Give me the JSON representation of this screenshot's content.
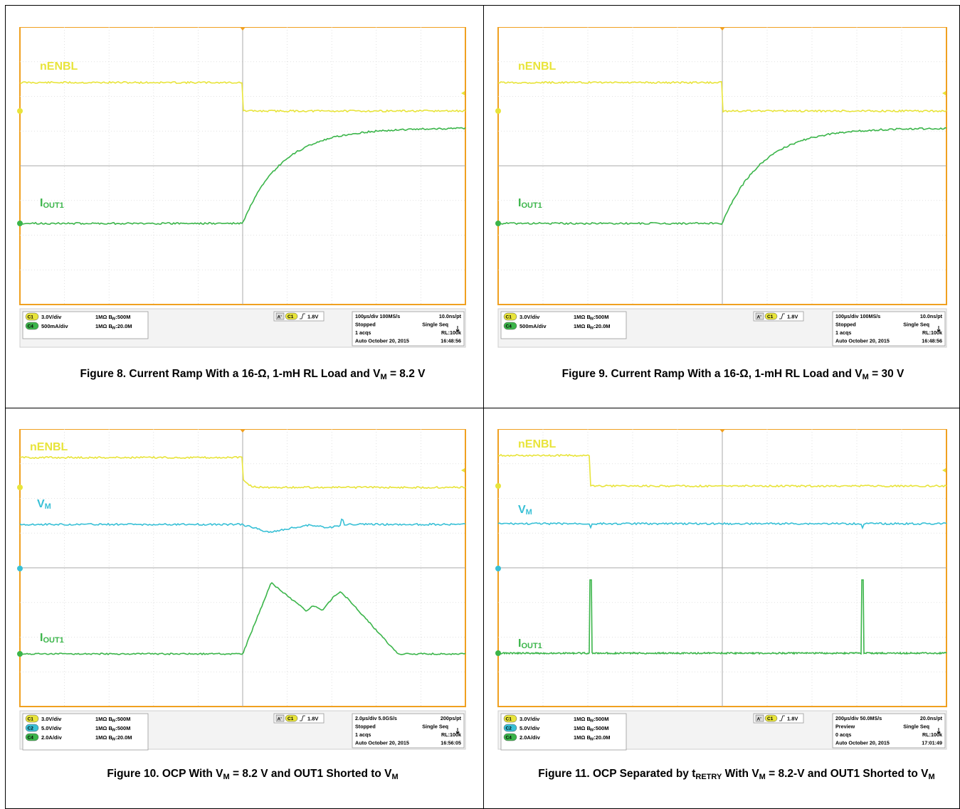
{
  "panels": [
    {
      "caption": [
        "Figure 8. Current Ramp With a 16-",
        "Ω",
        ", 1-mH RL Load and V",
        "M",
        " = 8.2 V"
      ],
      "trace_labels": {
        "nENBL": "nENBL",
        "IOUT1": [
          "I",
          "OUT1"
        ]
      },
      "channels": [
        {
          "badge": "C1",
          "scale": "3.0V/div",
          "impedance": "1MΩ",
          "bw": "500M",
          "color": "#e8e43a"
        },
        {
          "badge": "C4",
          "scale": "500mA/div",
          "impedance": "1MΩ",
          "bw": "20.0M",
          "color": "#3bb54a"
        }
      ],
      "trigger": {
        "badge": "A'",
        "ch": "C1",
        "level": "1.8V"
      },
      "timebase": {
        "div": "100µs/div",
        "rate": "100MS/s",
        "pt": "10.0ns/pt",
        "state": "Stopped",
        "mode": "Single Seq",
        "acqs": "1 acqs",
        "rl": "RL:100k",
        "auto": "Auto",
        "date": "October 20, 2015",
        "time": "16:48:56"
      }
    },
    {
      "caption": [
        "Figure 9. Current Ramp With a 16-",
        "Ω",
        ", 1-mH RL Load and V",
        "M",
        " = 30 V"
      ],
      "trace_labels": {
        "nENBL": "nENBL",
        "IOUT1": [
          "I",
          "OUT1"
        ]
      },
      "channels": [
        {
          "badge": "C1",
          "scale": "3.0V/div",
          "impedance": "1MΩ",
          "bw": "500M",
          "color": "#e8e43a"
        },
        {
          "badge": "C4",
          "scale": "500mA/div",
          "impedance": "1MΩ",
          "bw": "20.0M",
          "color": "#3bb54a"
        }
      ],
      "trigger": {
        "badge": "A'",
        "ch": "C1",
        "level": "1.8V"
      },
      "timebase": {
        "div": "100µs/div",
        "rate": "100MS/s",
        "pt": "10.0ns/pt",
        "state": "Stopped",
        "mode": "Single Seq",
        "acqs": "1 acqs",
        "rl": "RL:100k",
        "auto": "Auto",
        "date": "October 20, 2015",
        "time": "16:48:56"
      }
    },
    {
      "caption": [
        "Figure 10. OCP With V",
        "M",
        " = 8.2 V and OUT1 Shorted to V",
        "M",
        ""
      ],
      "trace_labels": {
        "nENBL": "nENBL",
        "VM": [
          "V",
          "M"
        ],
        "IOUT1": [
          "I",
          "OUT1"
        ]
      },
      "channels": [
        {
          "badge": "C1",
          "scale": "3.0V/div",
          "impedance": "1MΩ",
          "bw": "500M",
          "color": "#e8e43a"
        },
        {
          "badge": "C2",
          "scale": "5.0V/div",
          "impedance": "1MΩ",
          "bw": "500M",
          "color": "#38c0d6"
        },
        {
          "badge": "C4",
          "scale": "2.0A/div",
          "impedance": "1MΩ",
          "bw": "20.0M",
          "color": "#3bb54a"
        }
      ],
      "trigger": {
        "badge": "A'",
        "ch": "C1",
        "level": "1.8V"
      },
      "timebase": {
        "div": "2.0µs/div",
        "rate": "5.0GS/s",
        "pt": "200ps/pt",
        "state": "Stopped",
        "mode": "Single Seq",
        "acqs": "1 acqs",
        "rl": "RL:100k",
        "auto": "Auto",
        "date": "October 20, 2015",
        "time": "16:56:05"
      }
    },
    {
      "caption": [
        "Figure 11. OCP Separated by t",
        "RETRY",
        " With V",
        "M",
        " = 8.2-V and OUT1 Shorted to V",
        "M",
        ""
      ],
      "trace_labels": {
        "nENBL": "nENBL",
        "VM": [
          "V",
          "M"
        ],
        "IOUT1": [
          "I",
          "OUT1"
        ]
      },
      "channels": [
        {
          "badge": "C1",
          "scale": "3.0V/div",
          "impedance": "1MΩ",
          "bw": "500M",
          "color": "#e8e43a"
        },
        {
          "badge": "C2",
          "scale": "5.0V/div",
          "impedance": "1MΩ",
          "bw": "500M",
          "color": "#38c0d6"
        },
        {
          "badge": "C4",
          "scale": "2.0A/div",
          "impedance": "1MΩ",
          "bw": "20.0M",
          "color": "#3bb54a"
        }
      ],
      "trigger": {
        "badge": "A'",
        "ch": "C1",
        "level": "1.8V"
      },
      "timebase": {
        "div": "200µs/div",
        "rate": "50.0MS/s",
        "pt": "20.0ns/pt",
        "state": "Preview",
        "mode": "Single Seq",
        "acqs": "0 acqs",
        "rl": "RL:100k",
        "auto": "Auto",
        "date": "October 20, 2015",
        "time": "17:01:49"
      }
    }
  ],
  "colors": {
    "grid_border": "#f0a020",
    "screen_bg": "#ffffff",
    "yellow": "#e8e43a",
    "cyan": "#38c0d6",
    "green": "#3bb54a",
    "status_bg": "#e8e8e8"
  }
}
